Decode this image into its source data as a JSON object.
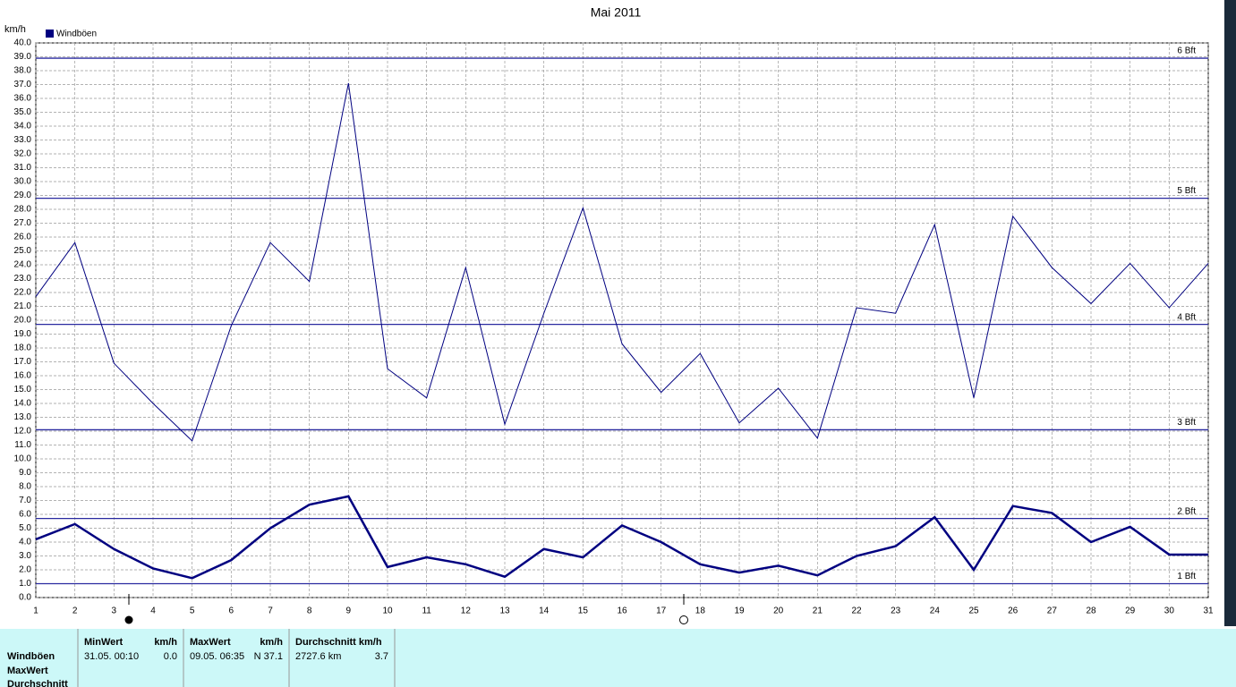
{
  "chart_data": {
    "type": "line",
    "title": "Mai 2011",
    "y_label": "km/h",
    "x": [
      1,
      2,
      3,
      4,
      5,
      6,
      7,
      8,
      9,
      10,
      11,
      12,
      13,
      14,
      15,
      16,
      17,
      18,
      19,
      20,
      21,
      22,
      23,
      24,
      25,
      26,
      27,
      28,
      29,
      30,
      31
    ],
    "xlim": [
      1,
      31
    ],
    "xticks": [
      1,
      2,
      3,
      4,
      5,
      6,
      7,
      8,
      9,
      10,
      11,
      12,
      13,
      14,
      15,
      16,
      17,
      18,
      19,
      20,
      21,
      22,
      23,
      24,
      25,
      26,
      27,
      28,
      29,
      30,
      31
    ],
    "ylim": [
      0,
      40
    ],
    "yticks": [
      {
        "value": 0,
        "label": "0.0"
      },
      {
        "value": 1,
        "label": "1.0"
      },
      {
        "value": 2,
        "label": "2.0"
      },
      {
        "value": 3,
        "label": "3.0"
      },
      {
        "value": 4,
        "label": "4.0"
      },
      {
        "value": 5,
        "label": "5.0"
      },
      {
        "value": 6,
        "label": "6.0"
      },
      {
        "value": 7,
        "label": "7.0"
      },
      {
        "value": 8,
        "label": "8.0"
      },
      {
        "value": 9,
        "label": "9.0"
      },
      {
        "value": 10,
        "label": "10.0"
      },
      {
        "value": 11,
        "label": "11.0"
      },
      {
        "value": 12,
        "label": "12.0"
      },
      {
        "value": 13,
        "label": "13.0"
      },
      {
        "value": 14,
        "label": "14.0"
      },
      {
        "value": 15,
        "label": "15.0"
      },
      {
        "value": 16,
        "label": "16.0"
      },
      {
        "value": 17,
        "label": "17.0"
      },
      {
        "value": 18,
        "label": "18.0"
      },
      {
        "value": 19,
        "label": "19.0"
      },
      {
        "value": 20,
        "label": "20.0"
      },
      {
        "value": 21,
        "label": "21.0"
      },
      {
        "value": 22,
        "label": "22.0"
      },
      {
        "value": 23,
        "label": "23.0"
      },
      {
        "value": 24,
        "label": "24.0"
      },
      {
        "value": 25,
        "label": "25.0"
      },
      {
        "value": 26,
        "label": "26.0"
      },
      {
        "value": 27,
        "label": "27.0"
      },
      {
        "value": 28,
        "label": "28.0"
      },
      {
        "value": 29,
        "label": "29.0"
      },
      {
        "value": 30,
        "label": "30.0"
      },
      {
        "value": 31,
        "label": "31.0"
      },
      {
        "value": 32,
        "label": "32.0"
      },
      {
        "value": 33,
        "label": "33.0"
      },
      {
        "value": 34,
        "label": "34.0"
      },
      {
        "value": 35,
        "label": "35.0"
      },
      {
        "value": 36,
        "label": "36.0"
      },
      {
        "value": 37,
        "label": "37.0"
      },
      {
        "value": 38,
        "label": "38.0"
      },
      {
        "value": 39,
        "label": "39.0"
      },
      {
        "value": 40,
        "label": "40.0"
      }
    ],
    "grid": true,
    "series": [
      {
        "name": "Windböen",
        "color": "#000080",
        "width": 1,
        "values": [
          21.7,
          25.6,
          16.9,
          14.0,
          11.3,
          19.6,
          25.6,
          22.8,
          37.1,
          16.5,
          14.4,
          23.8,
          12.5,
          20.5,
          28.1,
          18.3,
          14.8,
          17.6,
          12.6,
          15.1,
          11.5,
          20.9,
          20.5,
          26.9,
          14.4,
          27.5,
          23.8,
          21.2,
          24.1,
          20.9,
          24.1
        ]
      },
      {
        "color": "#000080",
        "width": 2.5,
        "values": [
          4.2,
          5.3,
          3.5,
          2.1,
          1.4,
          2.7,
          5.0,
          6.7,
          7.3,
          2.2,
          2.9,
          2.4,
          1.5,
          3.5,
          2.9,
          5.2,
          4.0,
          2.4,
          1.8,
          2.3,
          1.6,
          3.0,
          3.7,
          5.8,
          2.0,
          6.6,
          6.1,
          4.0,
          5.1,
          3.1,
          3.1
        ]
      }
    ],
    "reference_lines": [
      {
        "value": 1.0,
        "label": "1 Bft"
      },
      {
        "value": 5.7,
        "label": "2 Bft"
      },
      {
        "value": 12.1,
        "label": "3 Bft"
      },
      {
        "value": 19.7,
        "label": "4 Bft"
      },
      {
        "value": 28.8,
        "label": "5 Bft"
      },
      {
        "value": 38.9,
        "label": "6 Bft"
      }
    ],
    "reference_color": "#2a2aa0"
  },
  "table": {
    "row_labels": [
      "Windböen",
      "MaxWert",
      "Durchschnitt"
    ],
    "columns": [
      {
        "header": "MinWert",
        "unit": "km/h",
        "date": "31.05.  00:10",
        "value": "0.0"
      },
      {
        "header": "MaxWert",
        "unit": "km/h",
        "date": "09.05.  06:35",
        "value": "N 37.1"
      },
      {
        "header": "Durchschnitt km/h",
        "date": "2727.6 km",
        "value": "3.7"
      }
    ]
  }
}
